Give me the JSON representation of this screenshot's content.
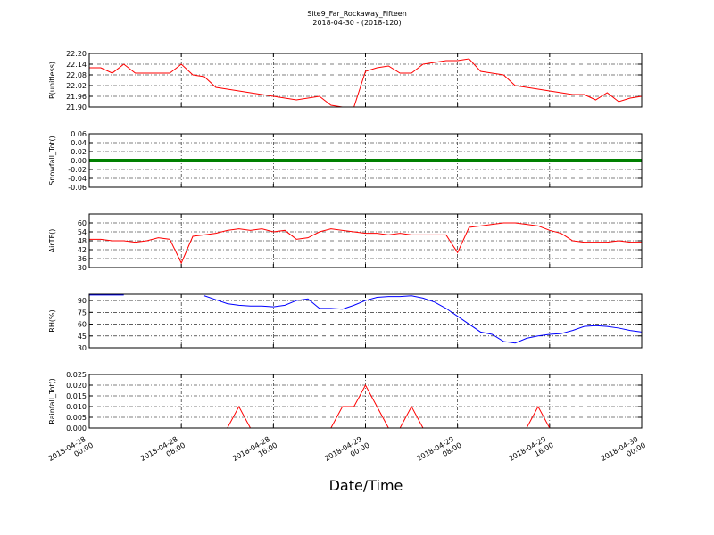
{
  "title": "Site9_Far_Rockaway_Fifteen",
  "subtitle": "2018-04-30 - (2018-120)",
  "x_label": "Date/Time",
  "chart_data": [
    {
      "type": "line",
      "y_label": "P(unitless)",
      "x": [
        "2018-04-28 00:00",
        "2018-04-28 01:00",
        "2018-04-28 02:00",
        "2018-04-28 03:00",
        "2018-04-28 04:00",
        "2018-04-28 05:00",
        "2018-04-28 06:00",
        "2018-04-28 07:00",
        "2018-04-28 08:00",
        "2018-04-28 09:00",
        "2018-04-28 10:00",
        "2018-04-28 11:00",
        "2018-04-28 12:00",
        "2018-04-28 13:00",
        "2018-04-28 14:00",
        "2018-04-28 15:00",
        "2018-04-28 16:00",
        "2018-04-28 17:00",
        "2018-04-28 18:00",
        "2018-04-28 19:00",
        "2018-04-28 20:00",
        "2018-04-28 21:00",
        "2018-04-28 22:00",
        "2018-04-28 23:00",
        "2018-04-29 00:00",
        "2018-04-29 01:00",
        "2018-04-29 02:00",
        "2018-04-29 03:00",
        "2018-04-29 04:00",
        "2018-04-29 05:00",
        "2018-04-29 06:00",
        "2018-04-29 07:00",
        "2018-04-29 08:00",
        "2018-04-29 09:00",
        "2018-04-29 10:00",
        "2018-04-29 11:00",
        "2018-04-29 12:00",
        "2018-04-29 13:00",
        "2018-04-29 14:00",
        "2018-04-29 15:00",
        "2018-04-29 16:00",
        "2018-04-29 17:00",
        "2018-04-29 18:00",
        "2018-04-29 19:00",
        "2018-04-29 20:00",
        "2018-04-29 21:00",
        "2018-04-29 22:00",
        "2018-04-29 23:00",
        "2018-04-30 00:00"
      ],
      "series": [
        {
          "name": "P",
          "color": "#ff0000",
          "values": [
            22.12,
            22.12,
            22.09,
            22.14,
            22.09,
            22.09,
            22.09,
            22.09,
            22.14,
            22.08,
            22.07,
            22.01,
            22.0,
            21.99,
            21.98,
            21.97,
            21.96,
            21.95,
            21.94,
            21.95,
            21.96,
            21.91,
            21.9,
            21.9,
            22.1,
            22.12,
            22.13,
            22.09,
            22.09,
            22.14,
            22.15,
            22.16,
            22.16,
            22.17,
            22.1,
            22.09,
            22.08,
            22.02,
            22.01,
            22.0,
            21.99,
            21.98,
            21.97,
            21.97,
            21.94,
            21.98,
            21.93,
            21.95,
            21.96
          ]
        }
      ],
      "xlim": [
        "2018-04-28 00:00",
        "2018-04-30 00:00"
      ],
      "xticks": [
        "2018-04-28 00:00",
        "2018-04-28 08:00",
        "2018-04-28 16:00",
        "2018-04-29 00:00",
        "2018-04-29 08:00",
        "2018-04-29 16:00",
        "2018-04-30 00:00"
      ],
      "ylim": [
        21.9,
        22.2
      ],
      "yticks": [
        {
          "value": 21.9,
          "label": "21.90"
        },
        21.96,
        22.02,
        22.08,
        22.14,
        {
          "value": 22.2,
          "label": "22.20"
        }
      ],
      "grid": true
    },
    {
      "type": "line",
      "y_label": "Snowfall_Tot()",
      "x": [
        "2018-04-28 00:00",
        "2018-04-28 01:00",
        "2018-04-28 02:00",
        "2018-04-28 03:00",
        "2018-04-28 04:00",
        "2018-04-28 05:00",
        "2018-04-28 06:00",
        "2018-04-28 07:00",
        "2018-04-28 08:00",
        "2018-04-28 09:00",
        "2018-04-28 10:00",
        "2018-04-28 11:00",
        "2018-04-28 12:00",
        "2018-04-28 13:00",
        "2018-04-28 14:00",
        "2018-04-28 15:00",
        "2018-04-28 16:00",
        "2018-04-28 17:00",
        "2018-04-28 18:00",
        "2018-04-28 19:00",
        "2018-04-28 20:00",
        "2018-04-28 21:00",
        "2018-04-28 22:00",
        "2018-04-28 23:00",
        "2018-04-29 00:00",
        "2018-04-29 01:00",
        "2018-04-29 02:00",
        "2018-04-29 03:00",
        "2018-04-29 04:00",
        "2018-04-29 05:00",
        "2018-04-29 06:00",
        "2018-04-29 07:00",
        "2018-04-29 08:00",
        "2018-04-29 09:00",
        "2018-04-29 10:00",
        "2018-04-29 11:00",
        "2018-04-29 12:00",
        "2018-04-29 13:00",
        "2018-04-29 14:00",
        "2018-04-29 15:00",
        "2018-04-29 16:00",
        "2018-04-29 17:00",
        "2018-04-29 18:00",
        "2018-04-29 19:00",
        "2018-04-29 20:00",
        "2018-04-29 21:00",
        "2018-04-29 22:00",
        "2018-04-29 23:00",
        "2018-04-30 00:00"
      ],
      "series": [
        {
          "name": "Snowfall_Tot",
          "color": "#008000",
          "values": [
            0,
            0,
            0,
            0,
            0,
            0,
            0,
            0,
            0,
            0,
            0,
            0,
            0,
            0,
            0,
            0,
            0,
            0,
            0,
            0,
            0,
            0,
            0,
            0,
            0,
            0,
            0,
            0,
            0,
            0,
            0,
            0,
            0,
            0,
            0,
            0,
            0,
            0,
            0,
            0,
            0,
            0,
            0,
            0,
            0,
            0,
            0,
            0,
            0
          ]
        }
      ],
      "xlim": [
        "2018-04-28 00:00",
        "2018-04-30 00:00"
      ],
      "xticks": [
        "2018-04-28 00:00",
        "2018-04-28 08:00",
        "2018-04-28 16:00",
        "2018-04-29 00:00",
        "2018-04-29 08:00",
        "2018-04-29 16:00",
        "2018-04-30 00:00"
      ],
      "ylim": [
        -0.06,
        0.06
      ],
      "yticks": [
        -0.06,
        -0.04,
        -0.02,
        {
          "value": 0,
          "label": "0.00"
        },
        0.02,
        0.04,
        0.06
      ],
      "grid": true
    },
    {
      "type": "line",
      "y_label": "AirTF()",
      "x": [
        "2018-04-28 00:00",
        "2018-04-28 01:00",
        "2018-04-28 02:00",
        "2018-04-28 03:00",
        "2018-04-28 04:00",
        "2018-04-28 05:00",
        "2018-04-28 06:00",
        "2018-04-28 07:00",
        "2018-04-28 08:00",
        "2018-04-28 09:00",
        "2018-04-28 10:00",
        "2018-04-28 11:00",
        "2018-04-28 12:00",
        "2018-04-28 13:00",
        "2018-04-28 14:00",
        "2018-04-28 15:00",
        "2018-04-28 16:00",
        "2018-04-28 17:00",
        "2018-04-28 18:00",
        "2018-04-28 19:00",
        "2018-04-28 20:00",
        "2018-04-28 21:00",
        "2018-04-28 22:00",
        "2018-04-28 23:00",
        "2018-04-29 00:00",
        "2018-04-29 01:00",
        "2018-04-29 02:00",
        "2018-04-29 03:00",
        "2018-04-29 04:00",
        "2018-04-29 05:00",
        "2018-04-29 06:00",
        "2018-04-29 07:00",
        "2018-04-29 08:00",
        "2018-04-29 09:00",
        "2018-04-29 10:00",
        "2018-04-29 11:00",
        "2018-04-29 12:00",
        "2018-04-29 13:00",
        "2018-04-29 14:00",
        "2018-04-29 15:00",
        "2018-04-29 16:00",
        "2018-04-29 17:00",
        "2018-04-29 18:00",
        "2018-04-29 19:00",
        "2018-04-29 20:00",
        "2018-04-29 21:00",
        "2018-04-29 22:00",
        "2018-04-29 23:00",
        "2018-04-30 00:00"
      ],
      "series": [
        {
          "name": "AirTF",
          "color": "#ff0000",
          "values": [
            49,
            49,
            48,
            48,
            47,
            48,
            50,
            49,
            33,
            51,
            52,
            53,
            55,
            56,
            55,
            56,
            54,
            55,
            49,
            50,
            54,
            56,
            55,
            54,
            53,
            53,
            52,
            53,
            52,
            52,
            52,
            52,
            40,
            57,
            58,
            59,
            60,
            60,
            59,
            58,
            55,
            53,
            48,
            47,
            47,
            47,
            48,
            47,
            47
          ]
        }
      ],
      "xlim": [
        "2018-04-28 00:00",
        "2018-04-30 00:00"
      ],
      "xticks": [
        "2018-04-28 00:00",
        "2018-04-28 08:00",
        "2018-04-28 16:00",
        "2018-04-29 00:00",
        "2018-04-29 08:00",
        "2018-04-29 16:00",
        "2018-04-30 00:00"
      ],
      "ylim": [
        30,
        66
      ],
      "yticks": [
        30,
        36,
        42,
        48,
        54,
        60
      ],
      "grid": true
    },
    {
      "type": "line",
      "y_label": "RH(%)",
      "x": [
        "2018-04-28 00:00",
        "2018-04-28 01:00",
        "2018-04-28 02:00",
        "2018-04-28 03:00",
        "2018-04-28 04:00",
        "2018-04-28 05:00",
        "2018-04-28 06:00",
        "2018-04-28 07:00",
        "2018-04-28 08:00",
        "2018-04-28 09:00",
        "2018-04-28 10:00",
        "2018-04-28 11:00",
        "2018-04-28 12:00",
        "2018-04-28 13:00",
        "2018-04-28 14:00",
        "2018-04-28 15:00",
        "2018-04-28 16:00",
        "2018-04-28 17:00",
        "2018-04-28 18:00",
        "2018-04-28 19:00",
        "2018-04-28 20:00",
        "2018-04-28 21:00",
        "2018-04-28 22:00",
        "2018-04-28 23:00",
        "2018-04-29 00:00",
        "2018-04-29 01:00",
        "2018-04-29 02:00",
        "2018-04-29 03:00",
        "2018-04-29 04:00",
        "2018-04-29 05:00",
        "2018-04-29 06:00",
        "2018-04-29 07:00",
        "2018-04-29 08:00",
        "2018-04-29 09:00",
        "2018-04-29 10:00",
        "2018-04-29 11:00",
        "2018-04-29 12:00",
        "2018-04-29 13:00",
        "2018-04-29 14:00",
        "2018-04-29 15:00",
        "2018-04-29 16:00",
        "2018-04-29 17:00",
        "2018-04-29 18:00",
        "2018-04-29 19:00",
        "2018-04-29 20:00",
        "2018-04-29 21:00",
        "2018-04-29 22:00",
        "2018-04-29 23:00",
        "2018-04-30 00:00"
      ],
      "series": [
        {
          "name": "RH",
          "color": "#0000ff",
          "values": [
            97,
            97,
            97,
            97,
            null,
            null,
            null,
            null,
            null,
            null,
            96,
            91,
            86,
            84,
            83,
            83,
            82,
            84,
            90,
            92,
            80,
            80,
            79,
            84,
            90,
            94,
            95,
            95,
            96,
            93,
            88,
            80,
            70,
            60,
            50,
            47,
            38,
            36,
            42,
            45,
            47,
            48,
            52,
            57,
            58,
            57,
            55,
            52,
            50
          ]
        }
      ],
      "xlim": [
        "2018-04-28 00:00",
        "2018-04-30 00:00"
      ],
      "xticks": [
        "2018-04-28 00:00",
        "2018-04-28 08:00",
        "2018-04-28 16:00",
        "2018-04-29 00:00",
        "2018-04-29 08:00",
        "2018-04-29 16:00",
        "2018-04-30 00:00"
      ],
      "ylim": [
        30,
        98
      ],
      "yticks": [
        30,
        45,
        60,
        75,
        90
      ],
      "grid": true
    },
    {
      "type": "line",
      "y_label": "Rainfall_Tot()",
      "x": [
        "2018-04-28 00:00",
        "2018-04-28 01:00",
        "2018-04-28 02:00",
        "2018-04-28 03:00",
        "2018-04-28 04:00",
        "2018-04-28 05:00",
        "2018-04-28 06:00",
        "2018-04-28 07:00",
        "2018-04-28 08:00",
        "2018-04-28 09:00",
        "2018-04-28 10:00",
        "2018-04-28 11:00",
        "2018-04-28 12:00",
        "2018-04-28 13:00",
        "2018-04-28 14:00",
        "2018-04-28 15:00",
        "2018-04-28 16:00",
        "2018-04-28 17:00",
        "2018-04-28 18:00",
        "2018-04-28 19:00",
        "2018-04-28 20:00",
        "2018-04-28 21:00",
        "2018-04-28 22:00",
        "2018-04-28 23:00",
        "2018-04-29 00:00",
        "2018-04-29 01:00",
        "2018-04-29 02:00",
        "2018-04-29 03:00",
        "2018-04-29 04:00",
        "2018-04-29 05:00",
        "2018-04-29 06:00",
        "2018-04-29 07:00",
        "2018-04-29 08:00",
        "2018-04-29 09:00",
        "2018-04-29 10:00",
        "2018-04-29 11:00",
        "2018-04-29 12:00",
        "2018-04-29 13:00",
        "2018-04-29 14:00",
        "2018-04-29 15:00",
        "2018-04-29 16:00",
        "2018-04-29 17:00",
        "2018-04-29 18:00",
        "2018-04-29 19:00",
        "2018-04-29 20:00",
        "2018-04-29 21:00",
        "2018-04-29 22:00",
        "2018-04-29 23:00",
        "2018-04-30 00:00"
      ],
      "series": [
        {
          "name": "Rainfall_Tot",
          "color": "#ff0000",
          "values": [
            0,
            0,
            0,
            0,
            0,
            0,
            0,
            0,
            0,
            0,
            0,
            0,
            0,
            0.01,
            0,
            0,
            0,
            0,
            0,
            0,
            0,
            0,
            0.01,
            0.01,
            0.02,
            0.01,
            0,
            0,
            0.01,
            0,
            0,
            0,
            0,
            0,
            0,
            0,
            0,
            0,
            0,
            0.01,
            0,
            0,
            0,
            0,
            0,
            0,
            0,
            0,
            0
          ]
        }
      ],
      "xlim": [
        "2018-04-28 00:00",
        "2018-04-30 00:00"
      ],
      "xticks": [
        "2018-04-28 00:00",
        "2018-04-28 08:00",
        "2018-04-28 16:00",
        "2018-04-29 00:00",
        "2018-04-29 08:00",
        "2018-04-29 16:00",
        "2018-04-30 00:00"
      ],
      "ylim": [
        0,
        0.025
      ],
      "yticks": [
        {
          "value": 0,
          "label": "0.000"
        },
        0.005,
        {
          "value": 0.01,
          "label": "0.010"
        },
        0.015,
        {
          "value": 0.02,
          "label": "0.020"
        },
        0.025
      ],
      "grid": true
    }
  ]
}
